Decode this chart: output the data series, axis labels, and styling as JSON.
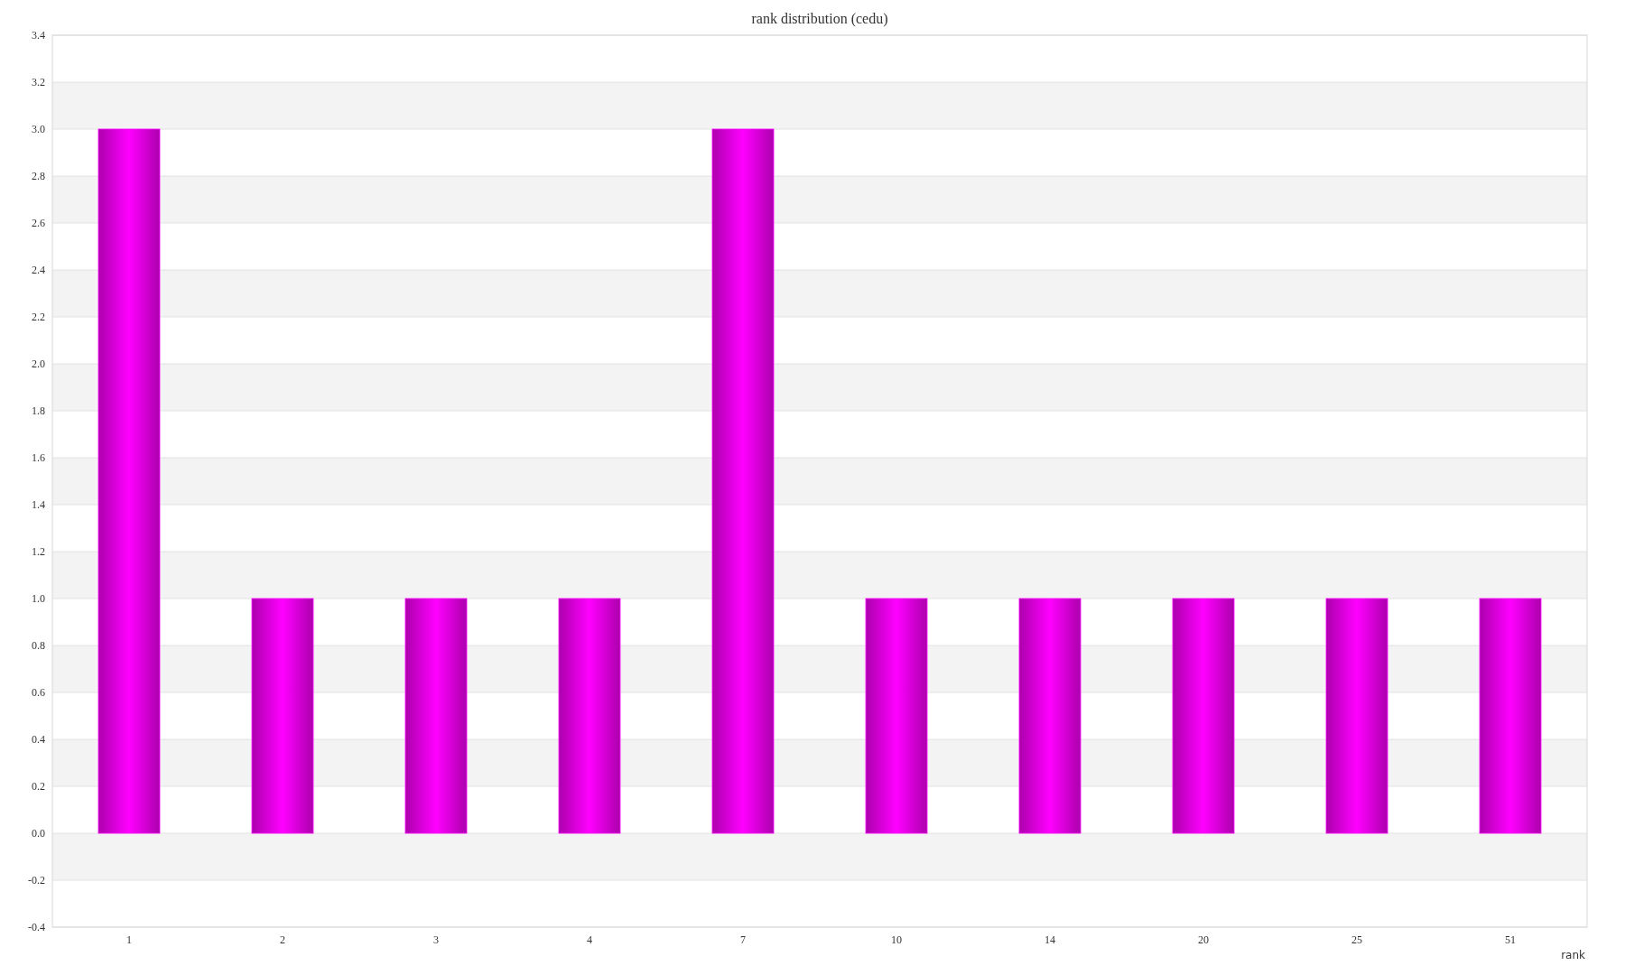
{
  "chart_data": {
    "type": "bar",
    "title": "rank distribution (cedu)",
    "xlabel": "rank",
    "categories": [
      "1",
      "2",
      "3",
      "4",
      "7",
      "10",
      "14",
      "20",
      "25",
      "51"
    ],
    "values": [
      3,
      1,
      1,
      1,
      3,
      1,
      1,
      1,
      1,
      1
    ],
    "color": "#ff00ff",
    "ylim": [
      -0.4,
      3.4
    ],
    "yticks": [
      -0.4,
      -0.2,
      {
        "value": 0,
        "label": "0.0"
      },
      0.2,
      0.4,
      0.6,
      0.8,
      {
        "value": 1,
        "label": "1.0"
      },
      1.2,
      1.4,
      1.6,
      1.8,
      {
        "value": 2,
        "label": "2.0"
      },
      2.2,
      2.4,
      2.6,
      2.8,
      {
        "value": 3,
        "label": "3.0"
      },
      3.2,
      3.4
    ],
    "grid": "y"
  }
}
